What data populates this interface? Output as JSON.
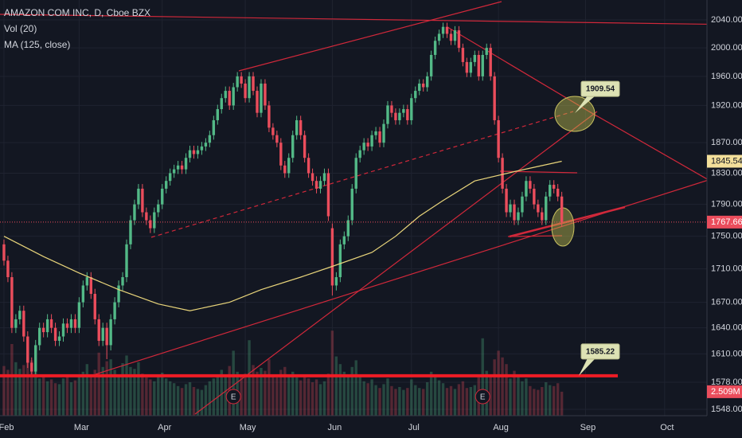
{
  "chart_data": {
    "type": "candlestick",
    "title": "AMAZON COM INC, D, Cboe BZX",
    "log_scale": true,
    "grid": true,
    "up_color": "#53b987",
    "down_color": "#eb4d5c",
    "xlim": [
      -1,
      177.7
    ],
    "xticks": [
      {
        "value": 0,
        "label": "Feb"
      },
      {
        "value": 19,
        "label": "Mar"
      },
      {
        "value": 40,
        "label": "Apr"
      },
      {
        "value": 61,
        "label": "May"
      },
      {
        "value": 83,
        "label": "Jun"
      },
      {
        "value": 103,
        "label": "Jul"
      },
      {
        "value": 125,
        "label": "Aug"
      },
      {
        "value": 147,
        "label": "Sep"
      },
      {
        "value": 167,
        "label": "Oct"
      }
    ],
    "ylim": [
      1541,
      2069
    ],
    "yticks": [
      {
        "value": 2040,
        "label": "2040.00"
      },
      {
        "value": 2000,
        "label": "2000.00"
      },
      {
        "value": 1960,
        "label": "1960.00"
      },
      {
        "value": 1920,
        "label": "1920.00"
      },
      {
        "value": 1870,
        "label": "1870.00"
      },
      {
        "value": 1830,
        "label": "1830.00"
      },
      {
        "value": 1790,
        "label": "1790.00"
      },
      {
        "value": 1750,
        "label": "1750.00"
      },
      {
        "value": 1710,
        "label": "1710.00"
      },
      {
        "value": 1670,
        "label": "1670.00"
      },
      {
        "value": 1640,
        "label": "1640.00"
      },
      {
        "value": 1610,
        "label": "1610.00"
      },
      {
        "value": 1578,
        "label": "1578.00"
      },
      {
        "value": 1548,
        "label": "1548.00"
      }
    ],
    "open": [
      1740,
      1720,
      1700,
      1640,
      1650,
      1660,
      1630,
      1600,
      1590,
      1620,
      1640,
      1635,
      1650,
      1640,
      1625,
      1630,
      1645,
      1640,
      1650,
      1640,
      1670,
      1690,
      1700,
      1680,
      1650,
      1625,
      1640,
      1620,
      1650,
      1670,
      1690,
      1700,
      1740,
      1770,
      1790,
      1810,
      1780,
      1770,
      1760,
      1780,
      1790,
      1810,
      1820,
      1830,
      1835,
      1840,
      1835,
      1850,
      1860,
      1855,
      1860,
      1865,
      1870,
      1880,
      1900,
      1915,
      1930,
      1940,
      1920,
      1945,
      1960,
      1950,
      1930,
      1960,
      1940,
      1910,
      1950,
      1920,
      1890,
      1880,
      1870,
      1840,
      1830,
      1850,
      1880,
      1900,
      1880,
      1850,
      1830,
      1820,
      1810,
      1820,
      1830,
      1760,
      1690,
      1700,
      1740,
      1750,
      1770,
      1810,
      1850,
      1860,
      1870,
      1865,
      1880,
      1885,
      1870,
      1895,
      1920,
      1910,
      1900,
      1910,
      1915,
      1900,
      1930,
      1940,
      1950,
      1945,
      1960,
      1990,
      2010,
      2020,
      2030,
      2020,
      2010,
      2025,
      2000,
      1980,
      1965,
      1980,
      1990,
      1960,
      1990,
      2000,
      1960,
      1900,
      1850,
      1810,
      1780,
      1790,
      1770,
      1780,
      1800,
      1820,
      1810,
      1790,
      1780,
      1770,
      1800,
      1815,
      1810,
      1800
    ],
    "high": [
      1746,
      1726,
      1706,
      1656,
      1666,
      1666,
      1636,
      1606,
      1626,
      1646,
      1646,
      1656,
      1656,
      1646,
      1636,
      1651,
      1651,
      1656,
      1656,
      1676,
      1696,
      1706,
      1706,
      1686,
      1656,
      1646,
      1646,
      1656,
      1676,
      1696,
      1706,
      1746,
      1776,
      1796,
      1816,
      1816,
      1786,
      1776,
      1786,
      1796,
      1816,
      1826,
      1836,
      1841,
      1846,
      1846,
      1856,
      1866,
      1866,
      1866,
      1871,
      1876,
      1886,
      1906,
      1921,
      1936,
      1946,
      1946,
      1951,
      1966,
      1966,
      1956,
      1966,
      1966,
      1946,
      1956,
      1956,
      1926,
      1896,
      1886,
      1876,
      1846,
      1856,
      1886,
      1906,
      1906,
      1886,
      1856,
      1836,
      1826,
      1826,
      1836,
      1836,
      1766,
      1706,
      1746,
      1756,
      1776,
      1816,
      1856,
      1866,
      1876,
      1876,
      1886,
      1891,
      1891,
      1901,
      1926,
      1926,
      1916,
      1916,
      1921,
      1921,
      1936,
      1946,
      1956,
      1956,
      1966,
      1996,
      2016,
      2026,
      2036,
      2036,
      2026,
      2031,
      2031,
      2006,
      1986,
      1986,
      1996,
      1996,
      1996,
      2006,
      2006,
      1966,
      1906,
      1856,
      1816,
      1796,
      1796,
      1786,
      1806,
      1826,
      1826,
      1816,
      1796,
      1786,
      1806,
      1821,
      1821,
      1816,
      1806
    ],
    "low": [
      1714,
      1694,
      1634,
      1634,
      1644,
      1624,
      1594,
      1584,
      1584,
      1614,
      1629,
      1629,
      1634,
      1619,
      1619,
      1624,
      1634,
      1634,
      1634,
      1634,
      1664,
      1684,
      1674,
      1644,
      1619,
      1619,
      1604,
      1614,
      1644,
      1664,
      1684,
      1694,
      1734,
      1764,
      1784,
      1774,
      1764,
      1754,
      1754,
      1774,
      1784,
      1804,
      1814,
      1824,
      1829,
      1829,
      1829,
      1844,
      1849,
      1849,
      1854,
      1859,
      1864,
      1874,
      1894,
      1909,
      1924,
      1914,
      1914,
      1939,
      1944,
      1924,
      1924,
      1934,
      1904,
      1904,
      1914,
      1884,
      1874,
      1864,
      1834,
      1824,
      1824,
      1844,
      1874,
      1874,
      1844,
      1824,
      1814,
      1804,
      1804,
      1814,
      1769,
      1678,
      1684,
      1694,
      1734,
      1744,
      1764,
      1804,
      1844,
      1854,
      1859,
      1859,
      1874,
      1864,
      1864,
      1889,
      1904,
      1894,
      1894,
      1904,
      1894,
      1894,
      1924,
      1934,
      1939,
      1939,
      1954,
      1984,
      2004,
      2014,
      2014,
      2004,
      2004,
      1994,
      1974,
      1959,
      1959,
      1974,
      1954,
      1954,
      1984,
      1954,
      1894,
      1844,
      1804,
      1774,
      1774,
      1764,
      1764,
      1774,
      1794,
      1804,
      1784,
      1774,
      1764,
      1764,
      1794,
      1804,
      1794,
      1762
    ],
    "close": [
      1720,
      1700,
      1640,
      1650,
      1660,
      1630,
      1600,
      1590,
      1620,
      1640,
      1635,
      1650,
      1640,
      1625,
      1630,
      1645,
      1640,
      1650,
      1640,
      1670,
      1690,
      1700,
      1680,
      1650,
      1625,
      1640,
      1620,
      1650,
      1670,
      1690,
      1700,
      1740,
      1770,
      1790,
      1810,
      1780,
      1770,
      1760,
      1780,
      1790,
      1810,
      1820,
      1830,
      1835,
      1840,
      1835,
      1850,
      1860,
      1855,
      1860,
      1865,
      1870,
      1880,
      1900,
      1915,
      1930,
      1940,
      1920,
      1945,
      1960,
      1950,
      1930,
      1960,
      1940,
      1910,
      1950,
      1920,
      1890,
      1880,
      1870,
      1840,
      1830,
      1850,
      1880,
      1900,
      1880,
      1850,
      1830,
      1820,
      1810,
      1820,
      1830,
      1775,
      1690,
      1700,
      1740,
      1750,
      1770,
      1810,
      1850,
      1860,
      1870,
      1865,
      1880,
      1885,
      1870,
      1895,
      1920,
      1910,
      1900,
      1910,
      1915,
      1900,
      1930,
      1940,
      1950,
      1945,
      1960,
      1990,
      2010,
      2020,
      2030,
      2020,
      2010,
      2025,
      2000,
      1980,
      1965,
      1980,
      1990,
      1960,
      1990,
      2000,
      1960,
      1900,
      1850,
      1810,
      1780,
      1790,
      1770,
      1780,
      1800,
      1820,
      1810,
      1790,
      1780,
      1770,
      1800,
      1815,
      1810,
      1800,
      1767.66
    ],
    "volume": {
      "name": "Vol (20)",
      "y2lim": [
        0,
        43.5
      ],
      "last_label": "2.509M",
      "values": [
        5.2,
        4.8,
        7.5,
        5.6,
        4.9,
        5.3,
        6.1,
        5.8,
        4.7,
        3.9,
        4.1,
        3.6,
        3.8,
        3.4,
        3.3,
        3.9,
        4.2,
        3.5,
        3.7,
        4.1,
        4.6,
        5.4,
        4.3,
        4.8,
        6.6,
        5.1,
        5.7,
        5.9,
        4.8,
        4.2,
        5.5,
        6.3,
        5.1,
        4.9,
        5.6,
        4.4,
        4.0,
        3.8,
        3.6,
        4.2,
        4.5,
        3.9,
        3.6,
        3.4,
        3.1,
        2.9,
        3.3,
        3.5,
        3.0,
        2.8,
        2.7,
        3.2,
        3.6,
        3.9,
        4.1,
        4.8,
        4.3,
        5.2,
        6.8,
        4.6,
        4.1,
        4.4,
        7.9,
        5.3,
        4.6,
        5.0,
        4.7,
        5.9,
        4.2,
        4.0,
        4.8,
        5.1,
        4.3,
        4.6,
        4.0,
        3.7,
        4.2,
        3.9,
        3.5,
        3.8,
        3.3,
        3.6,
        4.4,
        8.9,
        6.2,
        5.4,
        4.6,
        4.3,
        5.1,
        5.8,
        4.2,
        3.6,
        3.4,
        3.8,
        3.2,
        2.9,
        3.3,
        3.9,
        3.1,
        2.8,
        3.0,
        2.7,
        2.9,
        3.8,
        3.2,
        2.9,
        2.8,
        3.5,
        4.6,
        4.1,
        3.7,
        3.4,
        2.9,
        3.1,
        2.8,
        3.3,
        3.6,
        2.9,
        3.0,
        3.2,
        4.0,
        8.1,
        4.7,
        4.3,
        5.9,
        6.8,
        6.1,
        5.4,
        3.9,
        4.7,
        4.2,
        3.6,
        3.9,
        3.1,
        2.8,
        2.7,
        3.0,
        3.5,
        3.2,
        3.1,
        3.4,
        2.509
      ]
    },
    "ma": {
      "name": "MA (125, close)",
      "color": "#e8d47a",
      "x": [
        0,
        10,
        19,
        29,
        39,
        47,
        57,
        65,
        75,
        83,
        93,
        99,
        105,
        111,
        119,
        129,
        141
      ],
      "values": [
        1750,
        1725,
        1705,
        1685,
        1668,
        1660,
        1670,
        1685,
        1700,
        1713,
        1730,
        1750,
        1775,
        1795,
        1820,
        1832,
        1845.54
      ]
    },
    "price_callouts": [
      1909.54,
      1585.22
    ],
    "events": [
      {
        "x": 58,
        "label": "E"
      },
      {
        "x": 121,
        "label": "E"
      }
    ]
  }
}
